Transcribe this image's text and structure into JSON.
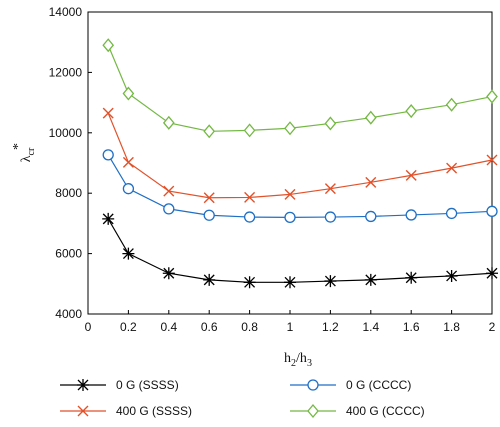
{
  "chart_data": {
    "type": "line",
    "xlabel_main": "h",
    "xlabel_sub1": "2",
    "xlabel_sep": "/h",
    "xlabel_sub2": "3",
    "ylabel_main": "λ",
    "ylabel_sup": "*",
    "ylabel_sub": "cr",
    "xlim": [
      0,
      2
    ],
    "ylim": [
      4000,
      14000
    ],
    "x_ticks": [
      "0",
      "0.2",
      "0.4",
      "0.6",
      "0.8",
      "1",
      "1.2",
      "1.4",
      "1.6",
      "1.8",
      "2"
    ],
    "y_ticks": [
      "4000",
      "6000",
      "8000",
      "10000",
      "12000",
      "14000"
    ],
    "grid": false,
    "legend_position": "bottom",
    "x": [
      0.1,
      0.2,
      0.4,
      0.6,
      0.8,
      1.0,
      1.2,
      1.4,
      1.6,
      1.8,
      2.0
    ],
    "series": [
      {
        "name": "0 G (SSSS)",
        "marker": "asterisk",
        "color": "#000000",
        "values": [
          7150,
          6000,
          5350,
          5130,
          5050,
          5050,
          5090,
          5130,
          5200,
          5260,
          5350
        ]
      },
      {
        "name": "0 G (CCCC)",
        "marker": "circle",
        "color": "#1f6fc5",
        "values": [
          9270,
          8150,
          7480,
          7270,
          7210,
          7200,
          7210,
          7230,
          7280,
          7330,
          7400
        ]
      },
      {
        "name": "400 G (SSSS)",
        "marker": "x",
        "color": "#e2522a",
        "values": [
          10650,
          9020,
          8070,
          7850,
          7860,
          7960,
          8150,
          8360,
          8590,
          8830,
          9100
        ]
      },
      {
        "name": "400 G (CCCC)",
        "marker": "diamond",
        "color": "#74b844",
        "values": [
          12900,
          11300,
          10330,
          10050,
          10080,
          10150,
          10310,
          10500,
          10720,
          10930,
          11200
        ]
      }
    ]
  }
}
